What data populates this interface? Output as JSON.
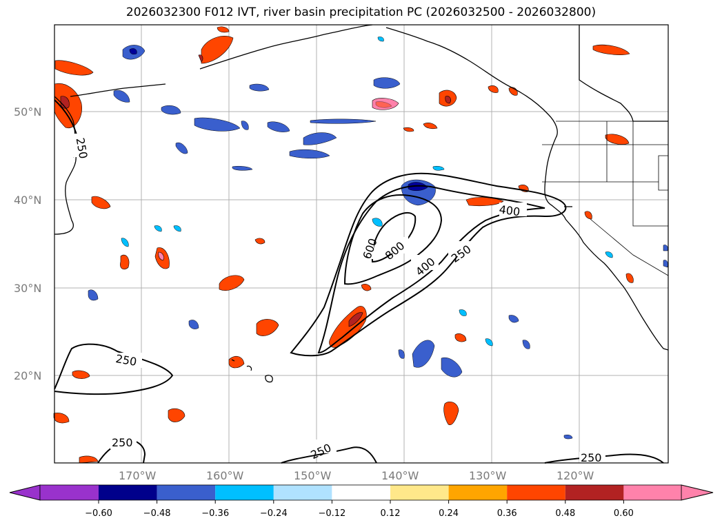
{
  "title": "2026032300 F012 IVT, river basin precipitation PC (2026032500 - 2026032800)",
  "map": {
    "lat_labels": [
      "50°N",
      "40°N",
      "30°N",
      "20°N"
    ],
    "lon_labels": [
      "170°W",
      "160°W",
      "150°W",
      "140°W",
      "130°W",
      "120°W"
    ],
    "ivt_contour_labels": [
      "250",
      "250",
      "250",
      "250",
      "250",
      "400",
      "400",
      "600",
      "800",
      "250"
    ],
    "colors": {
      "neg_strong": "#000099",
      "neg_mid": "#3a5fcd",
      "neg_low": "#00bfff",
      "neg_weak": "#aee0ff",
      "pos_weak": "#ffe88a",
      "pos_low": "#ffa500",
      "pos_mid": "#ff4500",
      "pos_strong": "#b22222",
      "pos_max": "#ff82ab"
    }
  },
  "colorbar": {
    "ticks": [
      "−0.60",
      "−0.48",
      "−0.36",
      "−0.24",
      "−0.12",
      "0.12",
      "0.24",
      "0.36",
      "0.48",
      "0.60"
    ],
    "colors": [
      "#9932cc",
      "#00008b",
      "#3a5fcd",
      "#00bfff",
      "#b0e2ff",
      "#ffffff",
      "#ffe88a",
      "#ffa500",
      "#ff4500",
      "#b22222",
      "#ff82ab"
    ]
  }
}
